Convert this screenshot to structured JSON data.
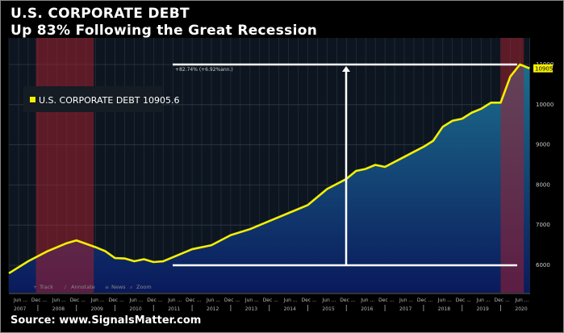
{
  "title": "U.S. CORPORATE DEBT",
  "subtitle": "Up 83% Following the Great Recession",
  "source": "Source: www.SignalsMatter.com",
  "toolbar": [
    "Track",
    "Annotate",
    "News",
    "Zoom"
  ],
  "colors": {
    "line": "#f5f000",
    "area_top": "#1c6e8c",
    "area_bottom": "#0a1a5c",
    "recession": "#a02030",
    "bg": "#0d1620"
  },
  "chart_data": {
    "type": "area",
    "title": "U.S. CORPORATE DEBT",
    "legend": {
      "label": "U.S. CORPORATE DEBT 10905.6",
      "placement": "top-left"
    },
    "last_value_tag": "10905",
    "annotation": "+82.74% (+6.92%ann.)",
    "annotation_range": [
      6000,
      11000
    ],
    "ylim": [
      5600,
      11400
    ],
    "yticks": [
      6000,
      7000,
      8000,
      9000,
      10000,
      11000
    ],
    "xlim": [
      2007.2,
      2020.9
    ],
    "xtick_rows": {
      "months": [
        "Jun",
        "Dec"
      ],
      "years": [
        "2007",
        "2008",
        "2009",
        "2010",
        "2011",
        "2012",
        "2013",
        "2014",
        "2015",
        "2016",
        "2017",
        "2018",
        "2019",
        "2020"
      ]
    },
    "recessions": [
      [
        2007.95,
        2009.45
      ],
      [
        2020.0,
        2020.6
      ]
    ],
    "x": [
      2007.25,
      2007.75,
      2008.25,
      2008.75,
      2009.0,
      2009.5,
      2009.75,
      2010.0,
      2010.25,
      2010.5,
      2010.75,
      2011.0,
      2011.25,
      2011.5,
      2011.75,
      2012.0,
      2012.5,
      2013.0,
      2013.5,
      2014.0,
      2014.5,
      2015.0,
      2015.5,
      2016.0,
      2016.25,
      2016.5,
      2016.75,
      2017.0,
      2017.5,
      2018.0,
      2018.25,
      2018.5,
      2018.75,
      2019.0,
      2019.25,
      2019.5,
      2019.75,
      2020.0,
      2020.25,
      2020.5,
      2020.75
    ],
    "values": [
      5800,
      6100,
      6350,
      6550,
      6620,
      6450,
      6350,
      6180,
      6170,
      6100,
      6150,
      6080,
      6100,
      6200,
      6300,
      6400,
      6500,
      6750,
      6900,
      7100,
      7300,
      7500,
      7900,
      8150,
      8350,
      8400,
      8500,
      8450,
      8700,
      8950,
      9100,
      9450,
      9600,
      9650,
      9800,
      9900,
      10050,
      10050,
      10700,
      11000,
      10905
    ]
  }
}
